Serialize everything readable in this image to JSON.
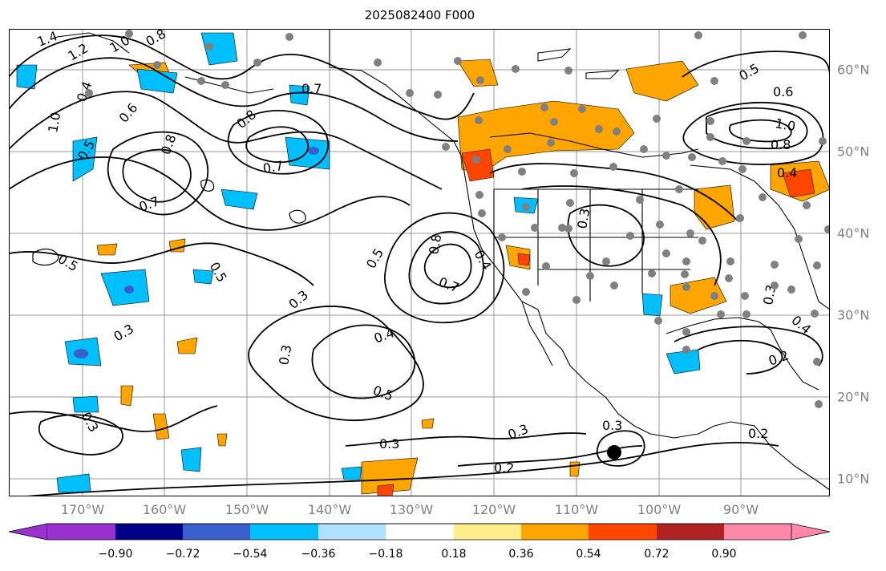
{
  "title": "2025082400 F000",
  "lon_labels": [
    "170°W",
    "160°W",
    "150°W",
    "140°W",
    "130°W",
    "120°W",
    "110°W",
    "100°W",
    "90°W"
  ],
  "lat_labels": [
    "60°N",
    "50°N",
    "40°N",
    "30°N",
    "20°N",
    "10°N"
  ],
  "contour_labels": [
    "1.4",
    "1.2",
    "1.0",
    "0.8",
    "0.7",
    "0.6",
    "0.5",
    "0.4",
    "0.3",
    "0.2"
  ],
  "colorbar": {
    "tick_labels": [
      "−0.90",
      "−0.72",
      "−0.54",
      "−0.36",
      "−0.18",
      "0.18",
      "0.36",
      "0.54",
      "0.72",
      "0.90"
    ],
    "colors": [
      "#9b30d0",
      "#00008b",
      "#3a5fcd",
      "#00bfff",
      "#b0e0ff",
      "#ffffff",
      "#ffec8b",
      "#ffa500",
      "#ff4500",
      "#b22222",
      "#ff88aa"
    ]
  },
  "colors": {
    "land_outline": "#000000",
    "grid": "#999999",
    "station_dot": "#808080",
    "positive_shade": "#ffa500",
    "strong_positive_shade": "#ff4500",
    "negative_shade": "#00bfff",
    "weak_negative_shade": "#b0e0ff"
  }
}
